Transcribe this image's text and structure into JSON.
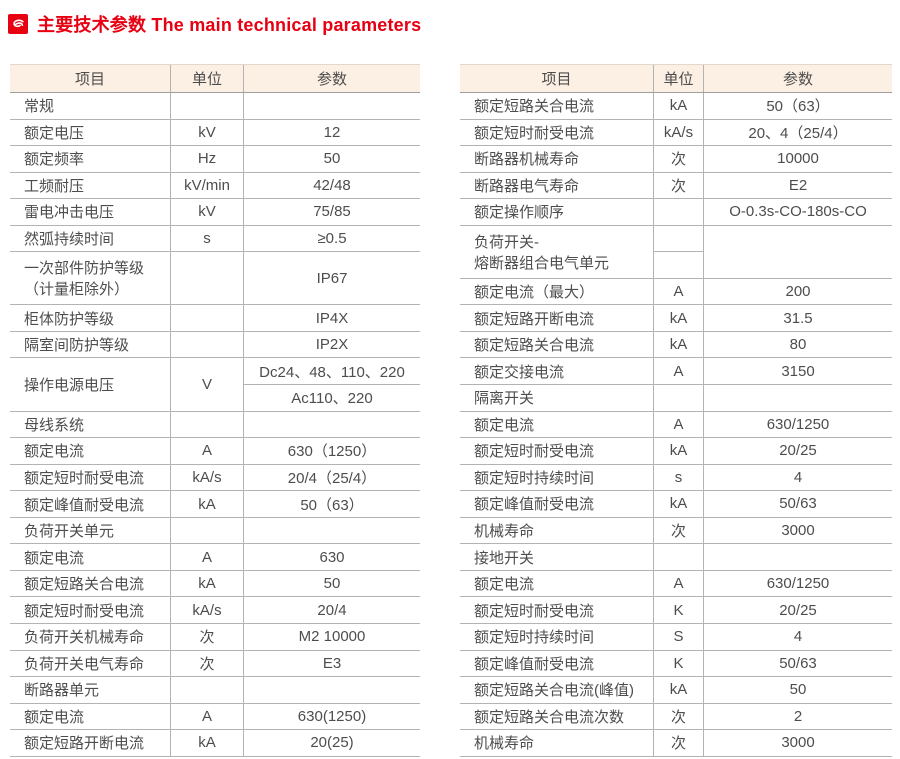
{
  "title": {
    "text": "主要技术参数 The main technical parameters",
    "icon": "logo-swirl-icon",
    "color": "#e60012"
  },
  "colors": {
    "accent_red": "#e60012",
    "header_bg": "#fcefe3",
    "grid_line": "#b3b3b3",
    "header_underline": "#9e9e9e",
    "text": "#4d4d4d"
  },
  "left_table": {
    "headers": {
      "item": "项目",
      "unit": "单位",
      "value": "参数"
    },
    "rows": [
      {
        "item": "常规",
        "unit": "",
        "value": ""
      },
      {
        "item": "额定电压",
        "unit": "kV",
        "value": "12"
      },
      {
        "item": "额定频率",
        "unit": "Hz",
        "value": "50"
      },
      {
        "item": "工频耐压",
        "unit": "kV/min",
        "value": "42/48"
      },
      {
        "item": "雷电冲击电压",
        "unit": "kV",
        "value": "75/85"
      },
      {
        "item": "然弧持续时间",
        "unit": "s",
        "value": "≥0.5"
      },
      {
        "type": "twoline",
        "item_lines": [
          "一次部件防护等级",
          "（计量柜除外）"
        ],
        "unit": "",
        "value": "IP67"
      },
      {
        "item": "柜体防护等级",
        "unit": "",
        "value": "IP4X"
      },
      {
        "item": "隔室间防护等级",
        "unit": "",
        "value": "IP2X"
      },
      {
        "type": "split",
        "item": "操作电源电压",
        "unit": "V",
        "values": [
          "Dc24、48、110、220",
          "Ac110、220"
        ]
      },
      {
        "item": "母线系统",
        "unit": "",
        "value": ""
      },
      {
        "item": "额定电流",
        "unit": "A",
        "value": "630（1250）"
      },
      {
        "item": "额定短时耐受电流",
        "unit": "kA/s",
        "value": "20/4（25/4）"
      },
      {
        "item": "额定峰值耐受电流",
        "unit": "kA",
        "value": "50（63）"
      },
      {
        "item": "负荷开关单元",
        "unit": "",
        "value": ""
      },
      {
        "item": "额定电流",
        "unit": "A",
        "value": "630"
      },
      {
        "item": "额定短路关合电流",
        "unit": "kA",
        "value": "50"
      },
      {
        "item": "额定短时耐受电流",
        "unit": "kA/s",
        "value": "20/4"
      },
      {
        "item": "负荷开关机械寿命",
        "unit": "次",
        "value": "M2 10000"
      },
      {
        "item": "负荷开关电气寿命",
        "unit": "次",
        "value": "E3"
      },
      {
        "item": "断路器单元",
        "unit": "",
        "value": ""
      },
      {
        "item": "额定电流",
        "unit": "A",
        "value": "630(1250)"
      },
      {
        "item": "额定短路开断电流",
        "unit": "kA",
        "value": "20(25)"
      }
    ]
  },
  "right_table": {
    "headers": {
      "item": "项目",
      "unit": "单位",
      "value": "参数"
    },
    "rows": [
      {
        "item": "额定短路关合电流",
        "unit": "kA",
        "value": "50（63）"
      },
      {
        "item": "额定短时耐受电流",
        "unit": "kA/s",
        "value": "20、4（25/4）"
      },
      {
        "item": "断路器机械寿命",
        "unit": "次",
        "value": "10000"
      },
      {
        "item": "断路器电气寿命",
        "unit": "次",
        "value": "E2"
      },
      {
        "item": "额定操作顺序",
        "unit": "",
        "value": "O-0.3s-CO-180s-CO"
      },
      {
        "type": "twoline",
        "item_lines": [
          "负荷开关-",
          "熔断器组合电气单元"
        ],
        "unit": "",
        "value": "",
        "unit_midline": true
      },
      {
        "item": "额定电流（最大）",
        "unit": "A",
        "value": "200"
      },
      {
        "item": "额定短路开断电流",
        "unit": "kA",
        "value": "31.5"
      },
      {
        "item": "额定短路关合电流",
        "unit": "kA",
        "value": "80"
      },
      {
        "item": "额定交接电流",
        "unit": "A",
        "value": "3150"
      },
      {
        "item": "隔离开关",
        "unit": "",
        "value": ""
      },
      {
        "item": "额定电流",
        "unit": "A",
        "value": "630/1250"
      },
      {
        "item": "额定短时耐受电流",
        "unit": "kA",
        "value": "20/25"
      },
      {
        "item": "额定短时持续时间",
        "unit": "s",
        "value": "4"
      },
      {
        "item": "额定峰值耐受电流",
        "unit": "kA",
        "value": "50/63"
      },
      {
        "item": "机械寿命",
        "unit": "次",
        "value": "3000"
      },
      {
        "item": "接地开关",
        "unit": "",
        "value": ""
      },
      {
        "item": "额定电流",
        "unit": "A",
        "value": "630/1250"
      },
      {
        "item": "额定短时耐受电流",
        "unit": "K",
        "value": "20/25"
      },
      {
        "item": "额定短时持续时间",
        "unit": "S",
        "value": "4"
      },
      {
        "item": "额定峰值耐受电流",
        "unit": "K",
        "value": "50/63"
      },
      {
        "item": "额定短路关合电流(峰值)",
        "unit": "kA",
        "value": "50"
      },
      {
        "item": "额定短路关合电流次数",
        "unit": "次",
        "value": "2"
      },
      {
        "item": "机械寿命",
        "unit": "次",
        "value": "3000"
      }
    ]
  }
}
